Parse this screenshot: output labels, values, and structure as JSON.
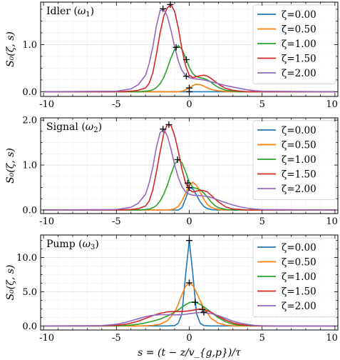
{
  "figure": {
    "xlabel": "s = (t − z/v_{g,p})/τ",
    "ylabel": "S₀(ζ, s)",
    "xlim": [
      -10.2,
      10.2
    ],
    "xticks": [
      -10,
      -5,
      0,
      5,
      10
    ],
    "xtick_labels": [
      "-10",
      "-5",
      "0",
      "5",
      "10"
    ],
    "grid": true,
    "legend_placement": "top-right"
  },
  "colors": {
    "zeta_0.00": "#1f77b4",
    "zeta_0.50": "#ff7f0e",
    "zeta_1.00": "#2ca02c",
    "zeta_1.50": "#d62728",
    "zeta_2.00": "#9467bd",
    "marker": "#000000"
  },
  "chart_data": [
    {
      "type": "line",
      "title": "Idler (ω₁)",
      "title_main": "Idler",
      "title_sym": "ω",
      "title_sub": "1",
      "ylim": [
        -0.1,
        1.9
      ],
      "yticks": [
        0.0,
        1.0
      ],
      "ytick_labels": [
        "0.0",
        "1.0"
      ],
      "x": [
        -10,
        -5,
        -4,
        -3.5,
        -3,
        -2.75,
        -2.5,
        -2.25,
        -2,
        -1.75,
        -1.5,
        -1.25,
        -1,
        -0.75,
        -0.5,
        -0.25,
        0,
        0.25,
        0.5,
        0.75,
        1,
        1.25,
        1.5,
        1.75,
        2,
        2.5,
        3,
        3.5,
        4,
        4.5,
        5,
        10
      ],
      "series": [
        {
          "name": "ζ=0.00",
          "color_key": "zeta_0.00",
          "values": [
            0,
            0,
            0,
            0,
            0,
            0,
            0,
            0,
            0,
            0,
            0,
            0,
            0,
            0,
            0,
            0,
            0,
            0,
            0,
            0,
            0,
            0,
            0,
            0,
            0,
            0,
            0,
            0,
            0,
            0,
            0,
            0
          ]
        },
        {
          "name": "ζ=0.50",
          "color_key": "zeta_0.50",
          "values": [
            0,
            0,
            0,
            0,
            0,
            0,
            0,
            0,
            0,
            0,
            0,
            0,
            0,
            0,
            0.01,
            0.04,
            0.08,
            0.13,
            0.16,
            0.15,
            0.12,
            0.08,
            0.05,
            0.03,
            0.02,
            0.005,
            0,
            0,
            0,
            0,
            0,
            0
          ]
        },
        {
          "name": "ζ=1.00",
          "color_key": "zeta_1.00",
          "values": [
            0,
            0,
            0,
            0,
            0.01,
            0.02,
            0.04,
            0.09,
            0.17,
            0.3,
            0.5,
            0.72,
            0.9,
            0.98,
            0.9,
            0.72,
            0.52,
            0.38,
            0.32,
            0.3,
            0.28,
            0.25,
            0.2,
            0.14,
            0.09,
            0.03,
            0.01,
            0,
            0,
            0,
            0,
            0
          ]
        },
        {
          "name": "ζ=1.50",
          "color_key": "zeta_1.50",
          "values": [
            0,
            0,
            0.01,
            0.03,
            0.08,
            0.18,
            0.4,
            0.8,
            1.25,
            1.6,
            1.78,
            1.85,
            1.7,
            1.35,
            0.9,
            0.55,
            0.35,
            0.3,
            0.32,
            0.34,
            0.35,
            0.33,
            0.28,
            0.22,
            0.16,
            0.07,
            0.03,
            0.01,
            0,
            0,
            0,
            0
          ]
        },
        {
          "name": "ζ=2.00",
          "color_key": "zeta_2.00",
          "values": [
            0,
            0.01,
            0.06,
            0.15,
            0.35,
            0.6,
            0.95,
            1.4,
            1.72,
            1.75,
            1.6,
            1.3,
            0.95,
            0.65,
            0.45,
            0.34,
            0.3,
            0.28,
            0.27,
            0.26,
            0.25,
            0.23,
            0.21,
            0.19,
            0.17,
            0.13,
            0.1,
            0.07,
            0.04,
            0.02,
            0.01,
            0
          ]
        }
      ],
      "markers": [
        {
          "series": "ζ=0.00",
          "x": 0,
          "y": 0
        },
        {
          "series": "ζ=0.50",
          "x": 0,
          "y": 0.08
        },
        {
          "series": "ζ=1.00",
          "x": -0.9,
          "y": 0.94
        },
        {
          "series": "ζ=1.50",
          "x": -1.3,
          "y": 1.85
        },
        {
          "series": "ζ=2.00",
          "x": -1.8,
          "y": 1.76
        },
        {
          "series": "ζ=1.00",
          "x": -0.2,
          "y": 0.68
        },
        {
          "series": "ζ=2.00",
          "x": -0.2,
          "y": 0.33
        }
      ]
    },
    {
      "type": "line",
      "title": "Signal (ω₂)",
      "title_main": "Signal",
      "title_sym": "ω",
      "title_sub": "2",
      "ylim": [
        -0.08,
        2.05
      ],
      "yticks": [
        0.0,
        1.0,
        2.0
      ],
      "ytick_labels": [
        "0.0",
        "1.0",
        "2.0"
      ],
      "x": [
        -10,
        -5,
        -4,
        -3.5,
        -3,
        -2.75,
        -2.5,
        -2.25,
        -2,
        -1.75,
        -1.5,
        -1.25,
        -1,
        -0.75,
        -0.5,
        -0.25,
        0,
        0.25,
        0.5,
        0.75,
        1,
        1.25,
        1.5,
        1.75,
        2,
        2.5,
        3,
        3.5,
        4,
        4.5,
        5,
        10
      ],
      "series": [
        {
          "name": "ζ=0.00",
          "color_key": "zeta_0.00",
          "values": [
            0,
            0,
            0,
            0,
            0,
            0,
            0,
            0,
            0,
            0,
            0,
            0,
            0,
            0,
            0.05,
            0.25,
            0.5,
            0.47,
            0.33,
            0.18,
            0.08,
            0.03,
            0.01,
            0,
            0,
            0,
            0,
            0,
            0,
            0,
            0,
            0
          ]
        },
        {
          "name": "ζ=0.50",
          "color_key": "zeta_0.50",
          "values": [
            0,
            0,
            0,
            0,
            0,
            0,
            0,
            0,
            0,
            0,
            0,
            0.01,
            0.03,
            0.08,
            0.2,
            0.38,
            0.55,
            0.62,
            0.55,
            0.4,
            0.24,
            0.12,
            0.06,
            0.03,
            0.01,
            0,
            0,
            0,
            0,
            0,
            0,
            0
          ]
        },
        {
          "name": "ζ=1.00",
          "color_key": "zeta_1.00",
          "values": [
            0,
            0,
            0,
            0,
            0.01,
            0.02,
            0.05,
            0.1,
            0.2,
            0.35,
            0.55,
            0.8,
            1.02,
            1.12,
            1.05,
            0.85,
            0.62,
            0.5,
            0.48,
            0.45,
            0.38,
            0.28,
            0.18,
            0.1,
            0.05,
            0.01,
            0,
            0,
            0,
            0,
            0,
            0
          ]
        },
        {
          "name": "ζ=1.50",
          "color_key": "zeta_1.50",
          "values": [
            0,
            0,
            0.01,
            0.03,
            0.09,
            0.2,
            0.45,
            0.85,
            1.3,
            1.7,
            1.9,
            1.88,
            1.65,
            1.3,
            0.9,
            0.6,
            0.45,
            0.4,
            0.42,
            0.44,
            0.43,
            0.4,
            0.33,
            0.25,
            0.18,
            0.07,
            0.02,
            0.01,
            0,
            0,
            0,
            0
          ]
        },
        {
          "name": "ζ=2.00",
          "color_key": "zeta_2.00",
          "values": [
            0,
            0.01,
            0.06,
            0.15,
            0.35,
            0.6,
            0.95,
            1.4,
            1.72,
            1.8,
            1.65,
            1.35,
            1.0,
            0.72,
            0.52,
            0.4,
            0.35,
            0.33,
            0.32,
            0.32,
            0.31,
            0.3,
            0.28,
            0.25,
            0.22,
            0.16,
            0.11,
            0.07,
            0.04,
            0.02,
            0.01,
            0
          ]
        }
      ],
      "markers": [
        {
          "series": "ζ=0.00",
          "x": 0,
          "y": 0.5
        },
        {
          "series": "ζ=0.50",
          "x": -0.1,
          "y": 0.6
        },
        {
          "series": "ζ=1.00",
          "x": -0.8,
          "y": 1.12
        },
        {
          "series": "ζ=1.50",
          "x": -1.4,
          "y": 1.9
        },
        {
          "series": "ζ=2.00",
          "x": -1.8,
          "y": 1.8
        }
      ]
    },
    {
      "type": "line",
      "title": "Pump (ω₃)",
      "title_main": "Pump",
      "title_sym": "ω",
      "title_sub": "3",
      "ylim": [
        -0.6,
        13.3
      ],
      "yticks": [
        0.0,
        5.0,
        10.0
      ],
      "ytick_labels": [
        "0.0",
        "5.0",
        "10.0"
      ],
      "x": [
        -10,
        -6,
        -5,
        -4.5,
        -4,
        -3.5,
        -3,
        -2.5,
        -2,
        -1.5,
        -1,
        -0.75,
        -0.5,
        -0.25,
        0,
        0.25,
        0.5,
        0.75,
        1,
        1.5,
        2,
        2.5,
        3,
        3.5,
        4,
        4.5,
        5,
        6,
        10
      ],
      "series": [
        {
          "name": "ζ=0.00",
          "color_key": "zeta_0.00",
          "values": [
            0,
            0,
            0,
            0,
            0,
            0,
            0,
            0,
            0,
            0,
            0.05,
            0.4,
            1.8,
            7.5,
            12.5,
            7.5,
            1.8,
            0.4,
            0.05,
            0,
            0,
            0,
            0,
            0,
            0,
            0,
            0,
            0,
            0
          ]
        },
        {
          "name": "ζ=0.50",
          "color_key": "zeta_0.50",
          "values": [
            0,
            0,
            0,
            0,
            0,
            0,
            0.02,
            0.08,
            0.25,
            0.75,
            2.0,
            3.2,
            4.6,
            5.8,
            6.3,
            5.9,
            4.9,
            3.7,
            2.6,
            1.1,
            0.4,
            0.1,
            0.03,
            0,
            0,
            0,
            0,
            0,
            0
          ]
        },
        {
          "name": "ζ=1.00",
          "color_key": "zeta_1.00",
          "values": [
            0,
            0,
            0.02,
            0.05,
            0.12,
            0.25,
            0.45,
            0.7,
            1.0,
            1.45,
            2.0,
            2.35,
            2.75,
            3.1,
            3.4,
            3.5,
            3.4,
            3.15,
            2.8,
            2.0,
            1.2,
            0.6,
            0.25,
            0.1,
            0.03,
            0.01,
            0,
            0,
            0
          ]
        },
        {
          "name": "ζ=1.50",
          "color_key": "zeta_1.50",
          "values": [
            0,
            0.02,
            0.1,
            0.2,
            0.4,
            0.7,
            1.1,
            1.5,
            1.85,
            2.05,
            2.1,
            2.1,
            2.1,
            2.15,
            2.2,
            2.3,
            2.4,
            2.45,
            2.4,
            2.0,
            1.4,
            0.85,
            0.45,
            0.2,
            0.08,
            0.03,
            0.01,
            0,
            0
          ]
        },
        {
          "name": "ζ=2.00",
          "color_key": "zeta_2.00",
          "values": [
            0,
            0.05,
            0.25,
            0.45,
            0.75,
            1.05,
            1.35,
            1.55,
            1.65,
            1.65,
            1.62,
            1.62,
            1.65,
            1.7,
            1.78,
            1.85,
            1.92,
            1.95,
            1.95,
            1.8,
            1.5,
            1.1,
            0.7,
            0.4,
            0.2,
            0.08,
            0.03,
            0,
            0
          ]
        }
      ],
      "markers": [
        {
          "series": "ζ=0.00",
          "x": 0,
          "y": 12.5
        },
        {
          "series": "ζ=0.50",
          "x": 0,
          "y": 6.3
        },
        {
          "series": "ζ=1.00",
          "x": 0.4,
          "y": 3.45
        },
        {
          "series": "ζ=1.50",
          "x": 0.9,
          "y": 2.4
        },
        {
          "series": "ζ=2.00",
          "x": 1.0,
          "y": 2.0
        }
      ]
    }
  ]
}
